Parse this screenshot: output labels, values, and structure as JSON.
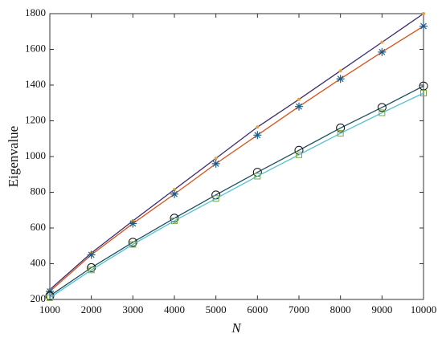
{
  "chart_data": {
    "type": "line",
    "x_label": "N",
    "y_label": "Eigenvalue",
    "x": [
      1000,
      2000,
      3000,
      4000,
      5000,
      6000,
      7000,
      8000,
      9000,
      10000
    ],
    "series": [
      {
        "color": "#3d2c6b",
        "marker": "dot",
        "marker_color": "#e8a03a",
        "values": [
          255,
          460,
          640,
          815,
          990,
          1165,
          1320,
          1480,
          1640,
          1800
        ]
      },
      {
        "color": "#d9541a",
        "marker": "asterisk",
        "marker_color": "#1f5c8a",
        "values": [
          245,
          450,
          625,
          790,
          960,
          1120,
          1280,
          1435,
          1585,
          1730
        ]
      },
      {
        "color": "#1f4e5f",
        "marker": "circle",
        "marker_color": "#111111",
        "values": [
          220,
          378,
          520,
          655,
          785,
          912,
          1035,
          1160,
          1275,
          1395
        ]
      },
      {
        "color": "#4fc3d0",
        "marker": "square",
        "marker_color": "#7aa83a",
        "values": [
          210,
          365,
          508,
          640,
          765,
          890,
          1010,
          1130,
          1245,
          1355
        ]
      }
    ],
    "xlim": [
      1000,
      10000
    ],
    "xticks": [
      1000,
      2000,
      3000,
      4000,
      5000,
      6000,
      7000,
      8000,
      9000,
      10000
    ],
    "ylim": [
      200,
      1800
    ],
    "yticks": [
      200,
      400,
      600,
      800,
      1000,
      1200,
      1400,
      1600,
      1800
    ]
  }
}
